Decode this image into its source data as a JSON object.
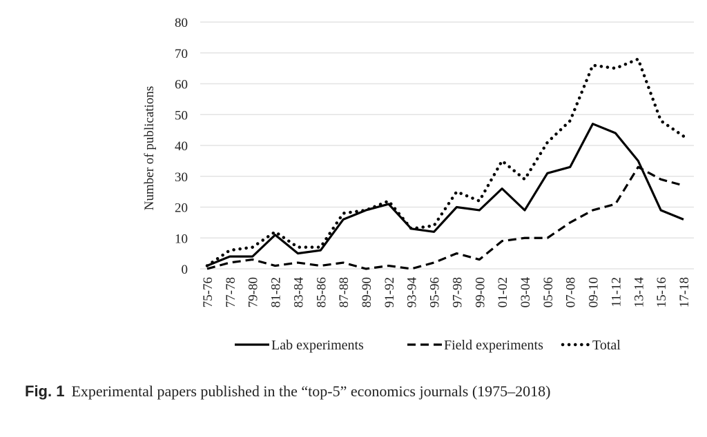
{
  "chart_data": {
    "type": "line",
    "title": "",
    "xlabel": "",
    "ylabel": "Number of publications",
    "ylim": [
      0,
      80
    ],
    "yticks": [
      0,
      10,
      20,
      30,
      40,
      50,
      60,
      70,
      80
    ],
    "grid": true,
    "legend_position": "bottom",
    "categories": [
      "75-76",
      "77-78",
      "79-80",
      "81-82",
      "83-84",
      "85-86",
      "87-88",
      "89-90",
      "91-92",
      "93-94",
      "95-96",
      "97-98",
      "99-00",
      "01-02",
      "03-04",
      "05-06",
      "07-08",
      "09-10",
      "11-12",
      "13-14",
      "15-16",
      "17-18"
    ],
    "series": [
      {
        "name": "Lab experiments",
        "style": "solid",
        "values": [
          1,
          4,
          4,
          11,
          5,
          6,
          16,
          19,
          21,
          13,
          12,
          20,
          19,
          26,
          19,
          31,
          33,
          47,
          44,
          35,
          19,
          16
        ]
      },
      {
        "name": "Field experiments",
        "style": "dashed",
        "values": [
          0,
          2,
          3,
          1,
          2,
          1,
          2,
          0,
          1,
          0,
          2,
          5,
          3,
          9,
          10,
          10,
          15,
          19,
          21,
          33,
          29,
          27
        ]
      },
      {
        "name": "Total",
        "style": "dotted",
        "values": [
          1,
          6,
          7,
          12,
          7,
          7,
          18,
          19,
          22,
          13,
          14,
          25,
          22,
          35,
          29,
          41,
          48,
          66,
          65,
          68,
          48,
          43
        ]
      }
    ]
  },
  "caption": {
    "label": "Fig. 1",
    "text": "Experimental papers published in the “top-5” economics journals (1975–2018)"
  }
}
